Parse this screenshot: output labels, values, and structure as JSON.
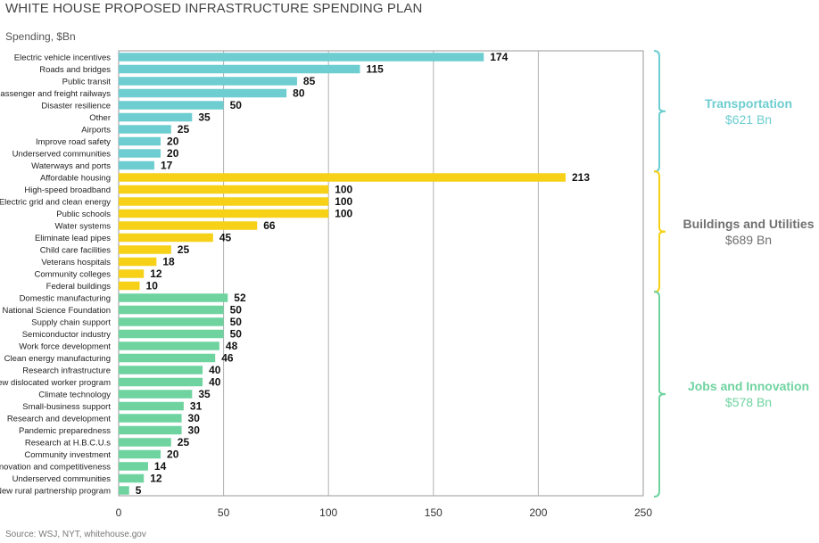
{
  "header": {
    "title": "WHITE HOUSE PROPOSED INFRASTRUCTURE SPENDING PLAN",
    "unit": "Spending, $Bn",
    "source": "Source: WSJ, NYT, whitehouse.gov"
  },
  "chart_data": {
    "type": "bar",
    "orientation": "horizontal",
    "xlim": [
      0,
      250
    ],
    "xticks": [
      0,
      50,
      100,
      150,
      200,
      250
    ],
    "grid": true,
    "groups": [
      {
        "name": "Transportation",
        "total": "$621 Bn",
        "color": "#6dcdd0",
        "categories": [
          "Electric vehicle incentives",
          "Roads and bridges",
          "Public transit",
          "Passenger and freight railways",
          "Disaster resilience",
          "Other",
          "Airports",
          "Improve road safety",
          "Underserved communities",
          "Waterways and ports"
        ],
        "values": [
          174,
          115,
          85,
          80,
          50,
          35,
          25,
          20,
          20,
          17
        ]
      },
      {
        "name": "Buildings and Utilities",
        "total": "$689 Bn",
        "color": "#f7d117",
        "label_color": "#707070",
        "categories": [
          "Affordable housing",
          "High-speed broadband",
          "Electric grid and clean energy",
          "Public schools",
          "Water systems",
          "Eliminate lead pipes",
          "Child care facilities",
          "Veterans hospitals",
          "Community colleges",
          "Federal buildings"
        ],
        "values": [
          213,
          100,
          100,
          100,
          66,
          45,
          25,
          18,
          12,
          10
        ]
      },
      {
        "name": "Jobs and Innovation",
        "total": "$578 Bn",
        "color": "#6fd3a0",
        "categories": [
          "Domestic manufacturing",
          "National Science Foundation",
          "Supply chain support",
          "Semiconductor industry",
          "Work force development",
          "Clean energy manufacturing",
          "Research infrastructure",
          "New dislocated worker program",
          "Climate technology",
          "Small-business support",
          "Research and development",
          "Pandemic preparedness",
          "Research at H.B.C.U.s",
          "Community investment",
          "Innovation and competitiveness",
          "Underserved communities",
          "New rural partnership program"
        ],
        "values": [
          52,
          50,
          50,
          50,
          48,
          46,
          40,
          40,
          35,
          31,
          30,
          30,
          25,
          20,
          14,
          12,
          5
        ]
      }
    ]
  }
}
